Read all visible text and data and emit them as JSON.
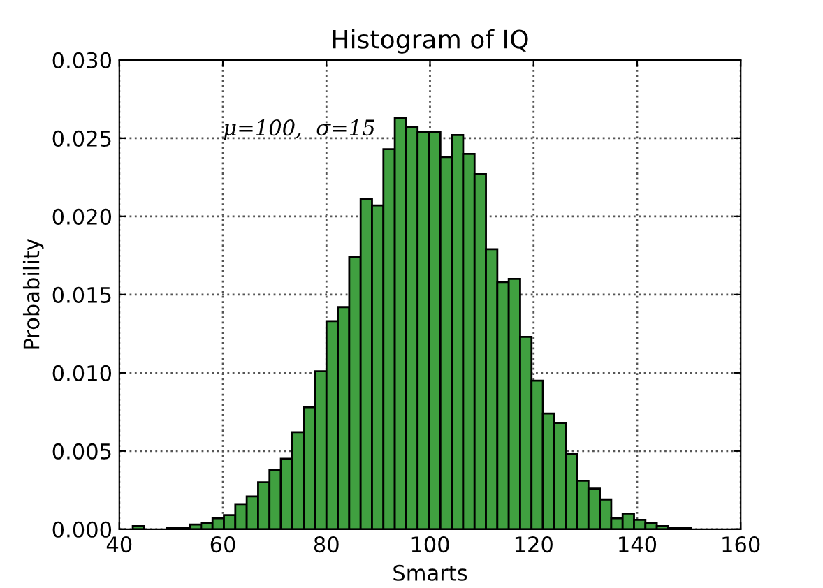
{
  "chart_data": {
    "type": "histogram",
    "title": "Histogram of IQ",
    "xlabel": "Smarts",
    "ylabel": "Probability",
    "bins": [
      42.6,
      44.8,
      47.0,
      49.2,
      51.4,
      53.6,
      55.8,
      58.0,
      60.2,
      62.4,
      64.6,
      66.8,
      69.0,
      71.2,
      73.4,
      75.6,
      77.8,
      80.0,
      82.2,
      84.4,
      86.6,
      88.8,
      91.0,
      93.2,
      95.4,
      97.6,
      99.8,
      102.0,
      104.2,
      106.4,
      108.6,
      110.8,
      113.0,
      115.2,
      117.4,
      119.6,
      121.8,
      124.0,
      126.2,
      128.4,
      130.6,
      132.8,
      135.0,
      137.2,
      139.4,
      141.6,
      143.8,
      146.0,
      148.2,
      150.4
    ],
    "values": [
      0.0002,
      0,
      0,
      0.0001,
      0.0001,
      0.0003,
      0.0004,
      0.0007,
      0.0009,
      0.0016,
      0.0021,
      0.003,
      0.0038,
      0.0045,
      0.0062,
      0.0078,
      0.0101,
      0.0133,
      0.0142,
      0.0174,
      0.0211,
      0.0207,
      0.0243,
      0.0263,
      0.0257,
      0.0254,
      0.0254,
      0.0238,
      0.0252,
      0.024,
      0.0227,
      0.0179,
      0.0158,
      0.016,
      0.0123,
      0.0095,
      0.0074,
      0.0068,
      0.0048,
      0.0031,
      0.0026,
      0.0019,
      0.0007,
      0.001,
      0.0006,
      0.0004,
      0.0002,
      0.0001,
      0.0001
    ],
    "color": "#40a040",
    "annotations": [
      "μ=100,  σ=15"
    ],
    "xlim": [
      40,
      160
    ],
    "xticks": [
      40,
      60,
      80,
      100,
      120,
      140,
      160
    ],
    "ylim": [
      0,
      0.03
    ],
    "yticks": [
      {
        "value": 0,
        "label": "0.000"
      },
      {
        "value": 0.005,
        "label": "0.005"
      },
      {
        "value": 0.01,
        "label": "0.010"
      },
      {
        "value": 0.015,
        "label": "0.015"
      },
      {
        "value": 0.02,
        "label": "0.020"
      },
      {
        "value": 0.025,
        "label": "0.025"
      },
      {
        "value": 0.03,
        "label": "0.030"
      }
    ],
    "grid": true
  }
}
